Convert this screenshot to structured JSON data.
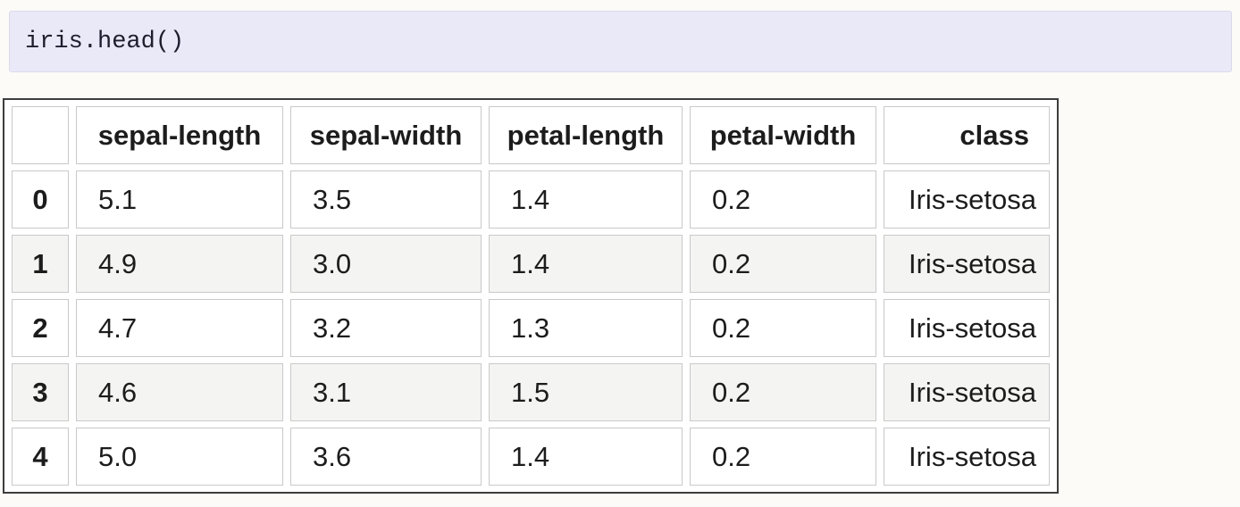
{
  "code_cell": {
    "code": "iris.head()",
    "background": "#e9e9f7",
    "border_color": "#dadaec",
    "text_color": "#1e1e2e"
  },
  "table": {
    "columns": [
      "",
      "sepal-length",
      "sepal-width",
      "petal-length",
      "petal-width",
      "class"
    ],
    "rows": [
      {
        "index": "0",
        "values": [
          "5.1",
          "3.5",
          "1.4",
          "0.2",
          "Iris-setosa"
        ]
      },
      {
        "index": "1",
        "values": [
          "4.9",
          "3.0",
          "1.4",
          "0.2",
          "Iris-setosa"
        ]
      },
      {
        "index": "2",
        "values": [
          "4.7",
          "3.2",
          "1.3",
          "0.2",
          "Iris-setosa"
        ]
      },
      {
        "index": "3",
        "values": [
          "4.6",
          "3.1",
          "1.5",
          "0.2",
          "Iris-setosa"
        ]
      },
      {
        "index": "4",
        "values": [
          "5.0",
          "3.6",
          "1.4",
          "0.2",
          "Iris-setosa"
        ]
      }
    ],
    "colors": {
      "stripe_row_background": "#f4f4f2",
      "cell_border": "#c9c9c9",
      "outer_border": "#3d3d3d",
      "page_background": "#fcfbf8",
      "text": "#1c1c1c"
    }
  }
}
